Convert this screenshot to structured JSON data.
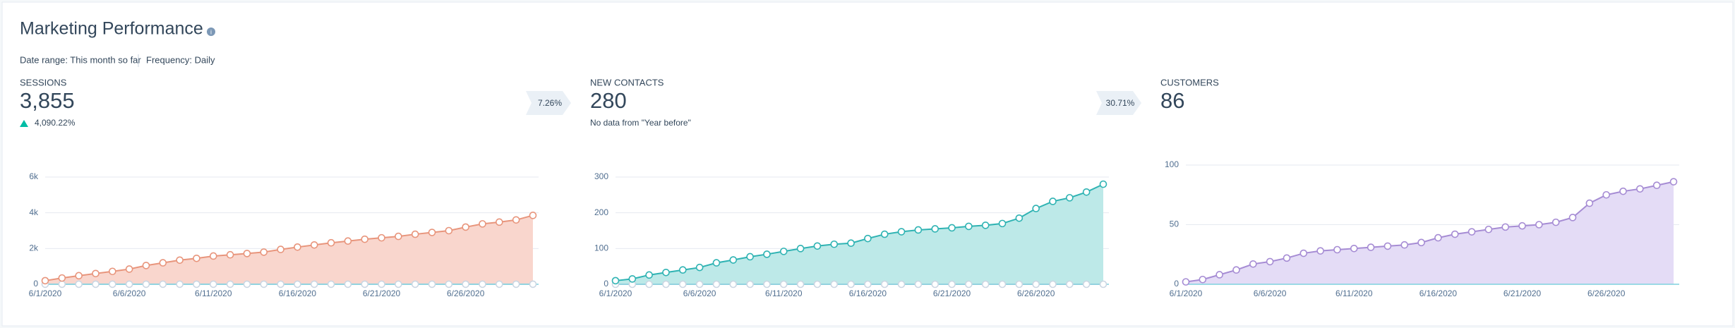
{
  "header": {
    "title": "Marketing Performance",
    "date_range": "Date range: This month so far",
    "frequency": "Frequency: Daily"
  },
  "chart_data": [
    {
      "type": "area",
      "title": "SESSIONS",
      "kpi": "3,855",
      "change": "4,090.22%",
      "badge": "7.26%",
      "x": [
        "6/1/2020",
        null,
        null,
        null,
        null,
        "6/6/2020",
        null,
        null,
        null,
        null,
        "6/11/2020",
        null,
        null,
        null,
        null,
        "6/16/2020",
        null,
        null,
        null,
        null,
        "6/21/2020",
        null,
        null,
        null,
        null,
        "6/26/2020",
        null,
        null,
        null,
        null
      ],
      "series": [
        {
          "color": "#e8957c",
          "fill": "#f9d6cd",
          "values": [
            200,
            350,
            480,
            600,
            720,
            850,
            1050,
            1200,
            1350,
            1450,
            1580,
            1650,
            1720,
            1800,
            1950,
            2080,
            2200,
            2320,
            2420,
            2520,
            2600,
            2680,
            2800,
            2900,
            3000,
            3200,
            3380,
            3480,
            3600,
            3855
          ]
        },
        {
          "color": "#cbd6e2",
          "values": [
            3,
            3,
            3,
            3,
            3,
            3,
            3,
            3,
            3,
            3,
            3,
            3,
            3,
            3,
            3,
            3,
            3,
            3,
            3,
            3,
            3,
            3,
            3,
            3,
            3,
            3,
            3,
            3,
            3,
            3
          ]
        }
      ],
      "ylim": [
        0,
        6000
      ],
      "yticks": [
        0,
        {
          "value": 2000,
          "label": "2k"
        },
        {
          "value": 4000,
          "label": "4k"
        },
        {
          "value": 6000,
          "label": "6k"
        }
      ]
    },
    {
      "type": "area",
      "title": "NEW CONTACTS",
      "kpi": "280",
      "note": "No data from \"Year before\"",
      "badge": "30.71%",
      "x": [
        "6/1/2020",
        null,
        null,
        null,
        null,
        "6/6/2020",
        null,
        null,
        null,
        null,
        "6/11/2020",
        null,
        null,
        null,
        null,
        "6/16/2020",
        null,
        null,
        null,
        null,
        "6/21/2020",
        null,
        null,
        null,
        null,
        "6/26/2020",
        null,
        null,
        null,
        null
      ],
      "series": [
        {
          "color": "#2fb3b3",
          "fill": "#bde9e8",
          "values": [
            10,
            15,
            26,
            33,
            40,
            47,
            60,
            68,
            77,
            84,
            92,
            100,
            107,
            112,
            115,
            128,
            140,
            147,
            152,
            155,
            158,
            162,
            165,
            170,
            185,
            212,
            232,
            242,
            258,
            280
          ]
        },
        {
          "color": "#cbd6e2",
          "values": [
            0,
            0,
            0,
            0,
            0,
            0,
            0,
            0,
            0,
            0,
            0,
            0,
            0,
            0,
            0,
            0,
            0,
            0,
            0,
            0,
            0,
            0,
            0,
            0,
            0,
            0,
            0,
            0,
            0,
            0
          ]
        }
      ],
      "ylim": [
        0,
        300
      ],
      "yticks": [
        0,
        100,
        200,
        300
      ]
    },
    {
      "type": "area",
      "title": "CUSTOMERS",
      "kpi": "86",
      "x": [
        "6/1/2020",
        null,
        null,
        null,
        null,
        "6/6/2020",
        null,
        null,
        null,
        null,
        "6/11/2020",
        null,
        null,
        null,
        null,
        "6/16/2020",
        null,
        null,
        null,
        null,
        "6/21/2020",
        null,
        null,
        null,
        null,
        "6/26/2020",
        null,
        null,
        null,
        null
      ],
      "series": [
        {
          "color": "#a68cd4",
          "fill": "#e4dcf6",
          "values": [
            2,
            4,
            8,
            12,
            17,
            19,
            22,
            26,
            28,
            29,
            30,
            31,
            32,
            33,
            35,
            39,
            42,
            44,
            46,
            48,
            49,
            50,
            52,
            56,
            68,
            75,
            78,
            80,
            83,
            86
          ]
        }
      ],
      "ylim": [
        0,
        100
      ],
      "yticks": [
        0,
        50,
        100
      ]
    }
  ]
}
